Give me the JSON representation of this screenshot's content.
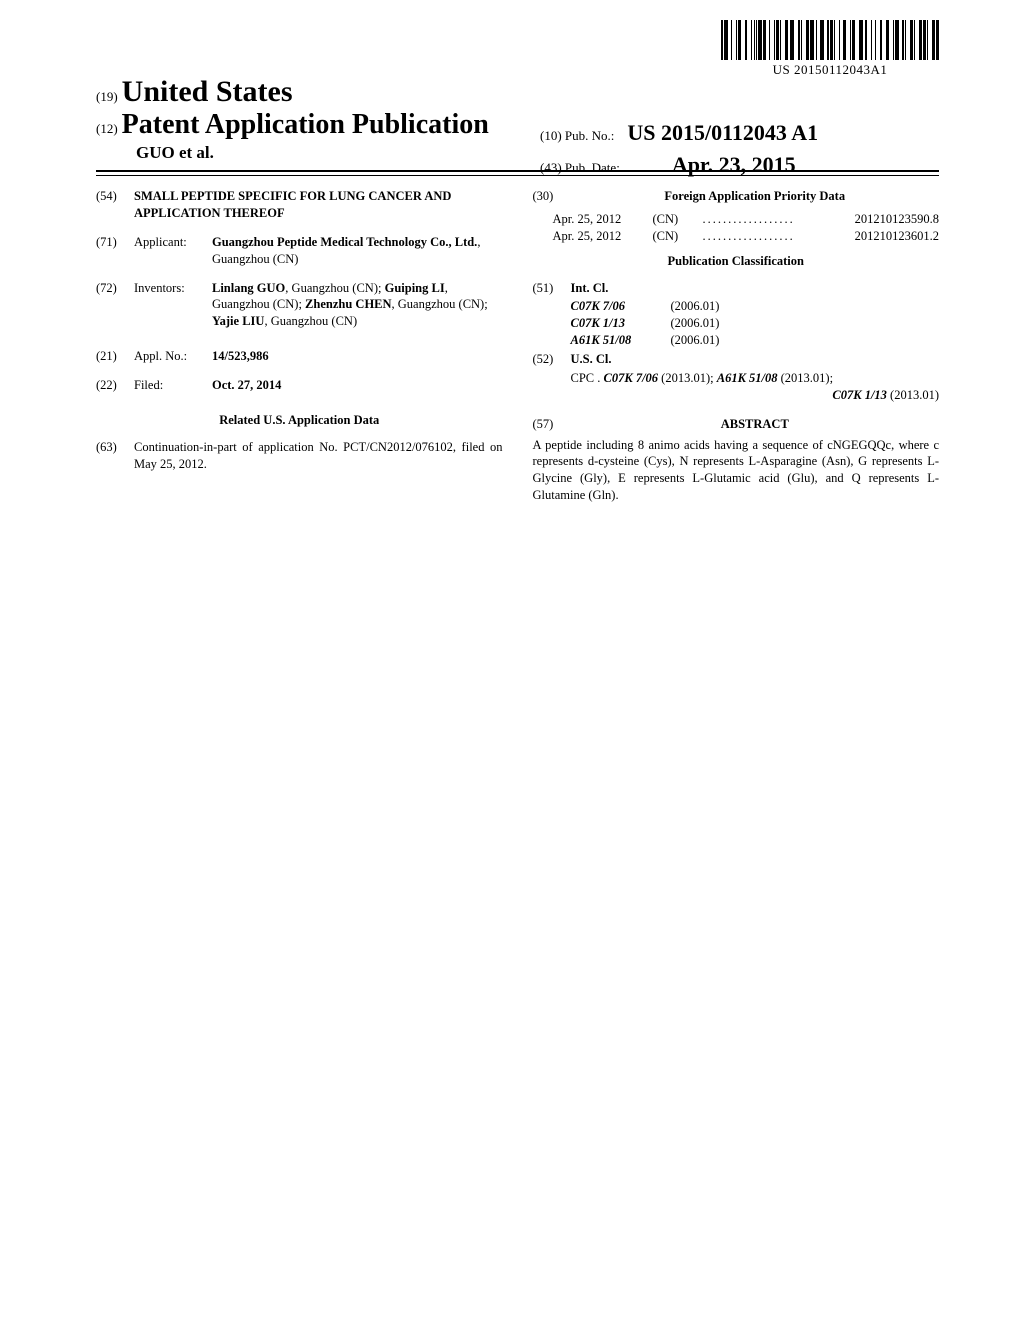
{
  "barcode": {
    "text": "US 20150112043A1",
    "widths": [
      2,
      1,
      4,
      3,
      1,
      4,
      1,
      1,
      3,
      4,
      2,
      4,
      1,
      2,
      1,
      1,
      1,
      1,
      4,
      1,
      3,
      3,
      1,
      4,
      1,
      1,
      3,
      1,
      1,
      4,
      3,
      2,
      4,
      4,
      2,
      1,
      1,
      4,
      3,
      1,
      4,
      2,
      1,
      3,
      4,
      3,
      2,
      1,
      3,
      1,
      1,
      4,
      1,
      3,
      3,
      4,
      1,
      1,
      3,
      4,
      4,
      2,
      2,
      4,
      1,
      3,
      1,
      4,
      2,
      4,
      3,
      4,
      1,
      1,
      4,
      3,
      2,
      1,
      1,
      4,
      3,
      1,
      1,
      4,
      3,
      1,
      3,
      1,
      1,
      4,
      3,
      1,
      3
    ]
  },
  "header": {
    "kind19_num": "(19)",
    "country": "United States",
    "kind12_num": "(12)",
    "pub_type": "Patent Application Publication",
    "inventor_line": "GUO et al.",
    "pub_no_num": "(10)",
    "pub_no_label": "Pub. No.:",
    "pub_no_value": "US 2015/0112043 A1",
    "pub_date_num": "(43)",
    "pub_date_label": "Pub. Date:",
    "pub_date_value": "Apr. 23, 2015"
  },
  "left": {
    "title_num": "(54)",
    "title": "SMALL PEPTIDE SPECIFIC FOR LUNG CANCER AND APPLICATION THEREOF",
    "applicant_num": "(71)",
    "applicant_label": "Applicant:",
    "applicant_name": "Guangzhou Peptide Medical Technology Co., Ltd.",
    "applicant_loc": ", Guangzhou (CN)",
    "inventors_num": "(72)",
    "inventors_label": "Inventors:",
    "inventors_html": "Linlang GUO|, Guangzhou (CN); |Guiping LI|, Guangzhou (CN); |Zhenzhu CHEN|, Guangzhou (CN); |Yajie LIU|, Guangzhou (CN)",
    "appl_num": "(21)",
    "appl_label": "Appl. No.:",
    "appl_value": "14/523,986",
    "filed_num": "(22)",
    "filed_label": "Filed:",
    "filed_value": "Oct. 27, 2014",
    "related_title": "Related U.S. Application Data",
    "related_num": "(63)",
    "related_text": "Continuation-in-part of application No. PCT/CN2012/076102, filed on May 25, 2012."
  },
  "right": {
    "foreign_num": "(30)",
    "foreign_title": "Foreign Application Priority Data",
    "priority": [
      {
        "date": "Apr. 25, 2012",
        "cc": "(CN)",
        "num": "201210123590.8"
      },
      {
        "date": "Apr. 25, 2012",
        "cc": "(CN)",
        "num": "201210123601.2"
      }
    ],
    "pub_class_title": "Publication Classification",
    "intcl_num": "(51)",
    "intcl_label": "Int. Cl.",
    "intcl": [
      {
        "code": "C07K 7/06",
        "ver": "(2006.01)"
      },
      {
        "code": "C07K 1/13",
        "ver": "(2006.01)"
      },
      {
        "code": "A61K 51/08",
        "ver": "(2006.01)"
      }
    ],
    "uscl_num": "(52)",
    "uscl_label": "U.S. Cl.",
    "cpc_prefix": "CPC .",
    "cpc": [
      {
        "code": "C07K 7/06",
        "ver": "(2013.01)"
      },
      {
        "code": "A61K 51/08",
        "ver": "(2013.01)"
      },
      {
        "code": "C07K 1/13",
        "ver": "(2013.01)"
      }
    ],
    "abstract_num": "(57)",
    "abstract_label": "ABSTRACT",
    "abstract_text": "A peptide including 8 animo acids having a sequence of cNGEGQQc, where c represents d-cysteine (Cys), N represents L-Asparagine (Asn), G represents L-Glycine (Gly), E represents L-Glutamic acid (Glu), and Q represents L-Glutamine (Gln)."
  }
}
